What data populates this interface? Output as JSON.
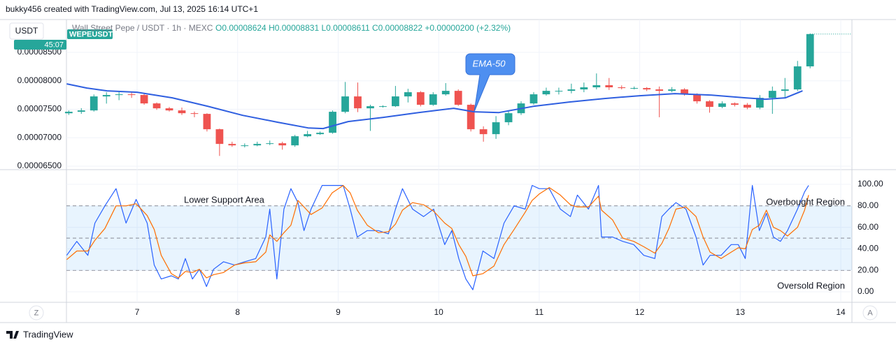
{
  "header": "bukky456 created with TradingView.com, Jul 13, 2025 16:14 UTC+1",
  "ui": {
    "currency": "USDT",
    "symbol_tag": "WEPEUSDT",
    "countdown": "45:07",
    "left_button": "Z",
    "right_button": "A",
    "brand": "TradingView"
  },
  "chart_data": [
    {
      "type": "candlestick",
      "legend": {
        "symbol": "Wall Street Pepe / USDT · 1h · MEXC",
        "ohlc": "O0.00008624 H0.00008831 L0.00008611 C0.00008822 +0.00000200 (+2.32%)"
      },
      "up_color": "#26a69a",
      "down_color": "#ef5350",
      "grid": true,
      "y_axis_side": "left",
      "xlim": [
        6.297,
        14.111
      ],
      "ylim": [
        6.451e-05,
        9.077e-05
      ],
      "yticks": [
        {
          "value": 6.5e-05,
          "label": "0.00006500"
        },
        {
          "value": 7e-05,
          "label": "0.00007000"
        },
        {
          "value": 7.5e-05,
          "label": "0.00007500"
        },
        {
          "value": 8e-05,
          "label": "0.00008000"
        },
        {
          "value": 8.5e-05,
          "label": "0.00008500"
        }
      ],
      "x": [
        6.32,
        6.445,
        6.57,
        6.695,
        6.82,
        6.945,
        7.07,
        7.195,
        7.32,
        7.445,
        7.57,
        7.695,
        7.82,
        7.945,
        8.07,
        8.195,
        8.32,
        8.445,
        8.57,
        8.695,
        8.82,
        8.945,
        9.07,
        9.195,
        9.32,
        9.445,
        9.57,
        9.695,
        9.82,
        9.945,
        10.07,
        10.195,
        10.32,
        10.445,
        10.57,
        10.695,
        10.82,
        10.945,
        11.07,
        11.195,
        11.32,
        11.445,
        11.57,
        11.695,
        11.82,
        11.945,
        12.07,
        12.195,
        12.32,
        12.445,
        12.57,
        12.695,
        12.82,
        12.945,
        13.07,
        13.195,
        13.32,
        13.445,
        13.57,
        13.695
      ],
      "open": [
        7.43e-05,
        7.456e-05,
        7.48e-05,
        7.726e-05,
        7.751e-05,
        7.763e-05,
        7.751e-05,
        7.603e-05,
        7.517e-05,
        7.48e-05,
        7.431e-05,
        7.419e-05,
        7.149e-05,
        6.891e-05,
        6.866e-05,
        6.866e-05,
        6.891e-05,
        6.903e-05,
        6.866e-05,
        7.026e-05,
        7.063e-05,
        7.087e-05,
        7.456e-05,
        7.726e-05,
        7.517e-05,
        7.554e-05,
        7.554e-05,
        7.726e-05,
        7.8e-05,
        7.579e-05,
        7.763e-05,
        7.824e-05,
        7.579e-05,
        7.149e-05,
        7.063e-05,
        7.272e-05,
        7.431e-05,
        7.603e-05,
        7.763e-05,
        7.824e-05,
        7.824e-05,
        7.849e-05,
        7.886e-05,
        7.923e-05,
        7.886e-05,
        7.873e-05,
        7.873e-05,
        7.849e-05,
        7.824e-05,
        7.849e-05,
        7.763e-05,
        7.64e-05,
        7.542e-05,
        7.603e-05,
        7.579e-05,
        7.529e-05,
        7.701e-05,
        7.824e-05,
        7.849e-05,
        8.254e-05
      ],
      "high": [
        7.48e-05,
        7.52e-05,
        7.76e-05,
        7.8e-05,
        7.8e-05,
        7.8e-05,
        7.77e-05,
        7.62e-05,
        7.54e-05,
        7.53e-05,
        7.46e-05,
        7.43e-05,
        7.16e-05,
        6.93e-05,
        6.9e-05,
        6.93e-05,
        6.95e-05,
        6.93e-05,
        7.05e-05,
        7.12e-05,
        7.11e-05,
        7.48e-05,
        7.98e-05,
        7.97e-05,
        7.58e-05,
        7.57e-05,
        7.91e-05,
        7.86e-05,
        7.82e-05,
        7.8e-05,
        7.96e-05,
        7.85e-05,
        7.6e-05,
        7.2e-05,
        7.38e-05,
        7.48e-05,
        7.64e-05,
        7.8e-05,
        7.88e-05,
        7.88e-05,
        7.95e-05,
        7.97e-05,
        8.13e-05,
        8.05e-05,
        7.92e-05,
        7.9e-05,
        7.89e-05,
        7.9e-05,
        7.89e-05,
        7.87e-05,
        7.78e-05,
        7.66e-05,
        7.64e-05,
        7.62e-05,
        7.61e-05,
        7.75e-05,
        7.9e-05,
        8.05e-05,
        8.35e-05,
        8.831e-05
      ],
      "low": [
        7.4e-05,
        7.42e-05,
        7.46e-05,
        7.6e-05,
        7.66e-05,
        7.7e-05,
        7.58e-05,
        7.49e-05,
        7.46e-05,
        7.4e-05,
        7.36e-05,
        7.11e-05,
        6.68e-05,
        6.84e-05,
        6.83e-05,
        6.85e-05,
        6.87e-05,
        6.79e-05,
        6.84e-05,
        7.01e-05,
        7.05e-05,
        7.07e-05,
        7.43e-05,
        7.45e-05,
        7.12e-05,
        7.53e-05,
        7.54e-05,
        7.62e-05,
        7.55e-05,
        7.56e-05,
        7.74e-05,
        7.56e-05,
        7.11e-05,
        6.93e-05,
        6.98e-05,
        7.22e-05,
        7.4e-05,
        7.58e-05,
        7.74e-05,
        7.76e-05,
        7.78e-05,
        7.8e-05,
        7.85e-05,
        7.84e-05,
        7.85e-05,
        7.85e-05,
        7.82e-05,
        7.36e-05,
        7.8e-05,
        7.74e-05,
        7.6e-05,
        7.44e-05,
        7.52e-05,
        7.55e-05,
        7.5e-05,
        7.5e-05,
        7.42e-05,
        7.7e-05,
        7.82e-05,
        8.22e-05
      ],
      "close": [
        7.456e-05,
        7.48e-05,
        7.726e-05,
        7.751e-05,
        7.763e-05,
        7.751e-05,
        7.603e-05,
        7.517e-05,
        7.48e-05,
        7.431e-05,
        7.419e-05,
        7.149e-05,
        6.891e-05,
        6.866e-05,
        6.866e-05,
        6.891e-05,
        6.903e-05,
        6.866e-05,
        7.026e-05,
        7.063e-05,
        7.087e-05,
        7.456e-05,
        7.726e-05,
        7.517e-05,
        7.554e-05,
        7.554e-05,
        7.726e-05,
        7.8e-05,
        7.579e-05,
        7.763e-05,
        7.824e-05,
        7.579e-05,
        7.149e-05,
        7.063e-05,
        7.272e-05,
        7.431e-05,
        7.603e-05,
        7.763e-05,
        7.824e-05,
        7.824e-05,
        7.849e-05,
        7.886e-05,
        7.923e-05,
        7.886e-05,
        7.873e-05,
        7.873e-05,
        7.849e-05,
        7.824e-05,
        7.849e-05,
        7.763e-05,
        7.64e-05,
        7.542e-05,
        7.603e-05,
        7.579e-05,
        7.529e-05,
        7.701e-05,
        7.824e-05,
        7.849e-05,
        8.254e-05,
        8.822e-05
      ],
      "ema": {
        "color": "#2f5fe0",
        "x": [
          6.3,
          6.5,
          6.7,
          7.0,
          7.35,
          7.7,
          8.05,
          8.4,
          8.7,
          8.85,
          9.1,
          9.45,
          9.8,
          10.15,
          10.35,
          10.6,
          10.95,
          11.3,
          11.65,
          12.0,
          12.35,
          12.7,
          13.05,
          13.25,
          13.45,
          13.62
        ],
        "values": [
          7.947e-05,
          7.873e-05,
          7.824e-05,
          7.8e-05,
          7.701e-05,
          7.554e-05,
          7.394e-05,
          7.272e-05,
          7.173e-05,
          7.161e-05,
          7.284e-05,
          7.358e-05,
          7.443e-05,
          7.517e-05,
          7.456e-05,
          7.443e-05,
          7.554e-05,
          7.628e-05,
          7.689e-05,
          7.738e-05,
          7.775e-05,
          7.751e-05,
          7.701e-05,
          7.677e-05,
          7.701e-05,
          7.824e-05
        ]
      },
      "annotations": [
        "EMA-50"
      ]
    },
    {
      "type": "line",
      "grid": true,
      "y_axis_side": "right",
      "xlim": [
        6.297,
        14.111
      ],
      "xticks": [
        7,
        8,
        9,
        10,
        11,
        12,
        13,
        14
      ],
      "ylim": [
        -9.7,
        113
      ],
      "yticks": [
        {
          "value": 0,
          "label": "0.00"
        },
        {
          "value": 20,
          "label": "20.00"
        },
        {
          "value": 40,
          "label": "40.00"
        },
        {
          "value": 60,
          "label": "60.00"
        },
        {
          "value": 80,
          "label": "80.00"
        },
        {
          "value": 100,
          "label": "100.00"
        }
      ],
      "bands": [
        20,
        50,
        80
      ],
      "band_color": "#2196f3",
      "x": [
        6.3,
        6.4,
        6.51,
        6.58,
        6.68,
        6.79,
        6.89,
        6.99,
        7.1,
        7.17,
        7.24,
        7.34,
        7.41,
        7.48,
        7.55,
        7.62,
        7.69,
        7.76,
        7.86,
        7.97,
        8.07,
        8.18,
        8.28,
        8.32,
        8.39,
        8.46,
        8.53,
        8.6,
        8.66,
        8.73,
        8.84,
        8.94,
        9.05,
        9.12,
        9.19,
        9.29,
        9.4,
        9.5,
        9.57,
        9.64,
        9.74,
        9.85,
        9.95,
        10.06,
        10.13,
        10.2,
        10.27,
        10.34,
        10.44,
        10.55,
        10.65,
        10.75,
        10.86,
        10.93,
        11.0,
        11.1,
        11.21,
        11.31,
        11.38,
        11.49,
        11.59,
        11.62,
        11.73,
        11.83,
        11.94,
        12.04,
        12.15,
        12.22,
        12.29,
        12.36,
        12.46,
        12.56,
        12.63,
        12.7,
        12.81,
        12.91,
        12.98,
        13.05,
        13.12,
        13.19,
        13.26,
        13.33,
        13.4,
        13.47,
        13.57,
        13.64,
        13.68
      ],
      "series": [
        {
          "color": "#2962ff",
          "values": [
            34,
            47,
            34,
            64,
            80,
            96,
            64,
            86,
            64,
            25,
            12,
            15,
            12,
            31,
            12,
            21,
            5,
            21,
            28,
            25,
            28,
            31,
            51,
            77,
            12,
            77,
            96,
            83,
            57,
            77,
            99,
            99,
            99,
            77,
            51,
            57,
            57,
            54,
            77,
            96,
            77,
            70,
            77,
            44,
            57,
            31,
            12,
            2,
            38,
            31,
            64,
            80,
            77,
            99,
            96,
            96,
            77,
            70,
            90,
            77,
            99,
            51,
            51,
            47,
            44,
            34,
            31,
            70,
            77,
            83,
            77,
            51,
            25,
            34,
            34,
            44,
            44,
            31,
            99,
            57,
            73,
            51,
            47,
            57,
            77,
            93,
            99
          ]
        },
        {
          "color": "#ff6d00",
          "values": [
            30,
            38,
            38,
            48,
            59,
            80,
            80,
            82,
            71,
            58,
            34,
            17,
            13,
            19,
            18,
            21,
            13,
            16,
            18,
            25,
            27,
            28,
            37,
            53,
            47,
            55,
            62,
            85,
            79,
            72,
            78,
            92,
            99,
            92,
            76,
            62,
            55,
            56,
            63,
            76,
            83,
            81,
            75,
            64,
            59,
            44,
            33,
            15,
            17,
            24,
            44,
            58,
            74,
            85,
            91,
            97,
            90,
            81,
            79,
            79,
            89,
            76,
            67,
            50,
            47,
            42,
            36,
            45,
            59,
            77,
            79,
            70,
            51,
            37,
            31,
            37,
            41,
            40,
            58,
            62,
            76,
            60,
            57,
            52,
            60,
            76,
            90
          ]
        }
      ],
      "annotations": [
        "Lower Support Area",
        "Overbought Region",
        "Oversold Region"
      ]
    }
  ]
}
